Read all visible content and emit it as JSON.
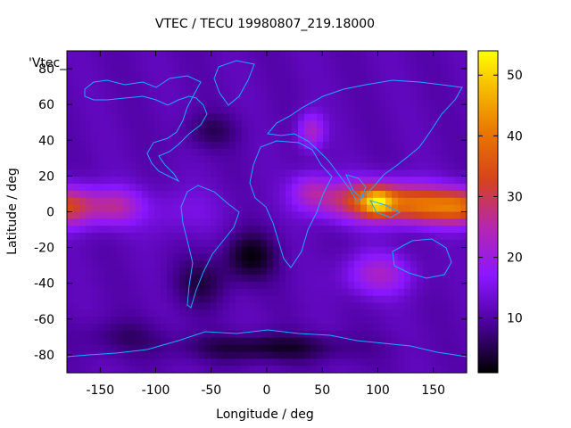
{
  "chart_data": {
    "type": "heatmap",
    "title": "VTEC / TECU 19980807_219.18000",
    "xlabel": "Longitude / deg",
    "ylabel": "Latitude / deg",
    "key_label": "'Vtec_",
    "xlim": [
      -180,
      180
    ],
    "ylim": [
      -90,
      90
    ],
    "clim": [
      1,
      54
    ],
    "x_ticks": [
      -150,
      -100,
      -50,
      0,
      50,
      100,
      150
    ],
    "y_ticks": [
      -80,
      -60,
      -40,
      -20,
      0,
      20,
      40,
      60,
      80
    ],
    "color_ticks": [
      10,
      20,
      30,
      40,
      50
    ],
    "colormap": "gnuplot-pm3d",
    "coastline_color": "#1fa8ff",
    "grid": false,
    "field_features": [
      {
        "lon": 100,
        "lat": 5,
        "value": 54
      },
      {
        "lon": 60,
        "lat": 8,
        "value": 33
      },
      {
        "lon": 150,
        "lat": 3,
        "value": 36
      },
      {
        "lon": -170,
        "lat": 3,
        "value": 34
      },
      {
        "lon": -130,
        "lat": 3,
        "value": 28
      },
      {
        "lon": 40,
        "lat": 45,
        "value": 26
      },
      {
        "lon": 100,
        "lat": -35,
        "value": 26
      },
      {
        "lon": -15,
        "lat": -25,
        "value": 2
      },
      {
        "lon": -60,
        "lat": -40,
        "value": 4
      },
      {
        "lon": 0,
        "lat": -75,
        "value": 4
      },
      {
        "lon": -50,
        "lat": 45,
        "value": 6
      }
    ]
  }
}
